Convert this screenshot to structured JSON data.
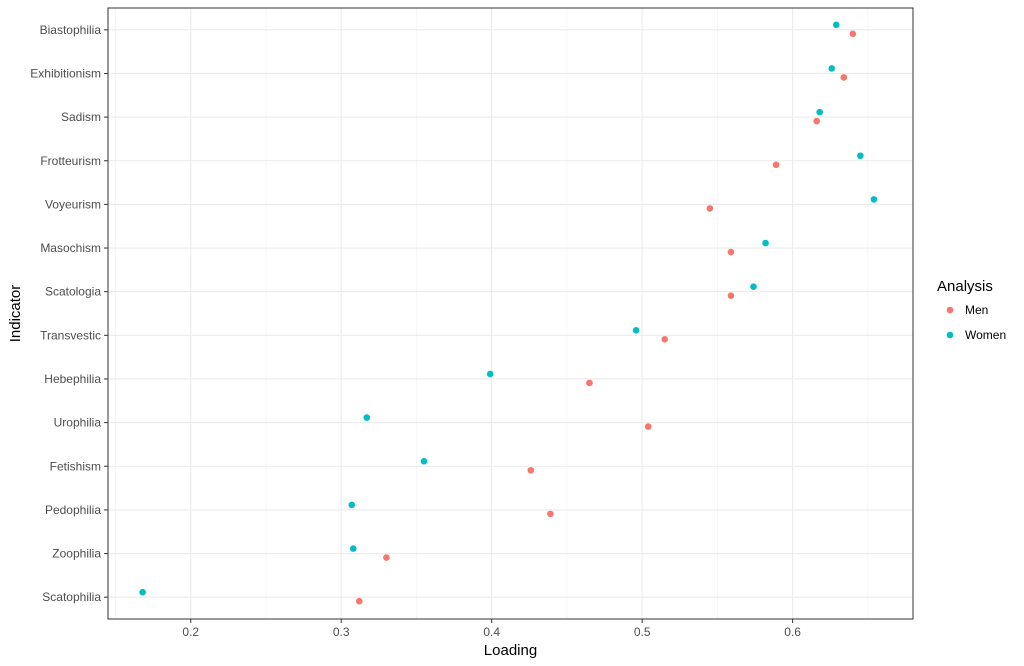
{
  "chart_data": {
    "type": "scatter",
    "xlabel": "Loading",
    "ylabel": "Indicator",
    "xlim": [
      0.145,
      0.68
    ],
    "x_ticks": [
      "0.2",
      "0.3",
      "0.4",
      "0.5",
      "0.6"
    ],
    "x_tick_values": [
      0.2,
      0.3,
      0.4,
      0.5,
      0.6
    ],
    "categories": [
      "Biastophilia",
      "Exhibitionism",
      "Sadism",
      "Frotteurism",
      "Voyeurism",
      "Masochism",
      "Scatologia",
      "Transvestic",
      "Hebephilia",
      "Urophilia",
      "Fetishism",
      "Pedophilia",
      "Zoophilia",
      "Scatophilia"
    ],
    "grid": true,
    "legend": {
      "title": "Analysis",
      "position": "right"
    },
    "series": [
      {
        "name": "Men",
        "color": "#F8766D",
        "values": [
          0.64,
          0.634,
          0.616,
          0.589,
          0.545,
          0.559,
          0.559,
          0.515,
          0.465,
          0.504,
          0.426,
          0.439,
          0.33,
          0.312
        ]
      },
      {
        "name": "Women",
        "color": "#00BFC4",
        "values": [
          0.629,
          0.626,
          0.618,
          0.645,
          0.654,
          0.582,
          0.574,
          0.496,
          0.399,
          0.317,
          0.355,
          0.307,
          0.308,
          0.168
        ]
      }
    ]
  }
}
